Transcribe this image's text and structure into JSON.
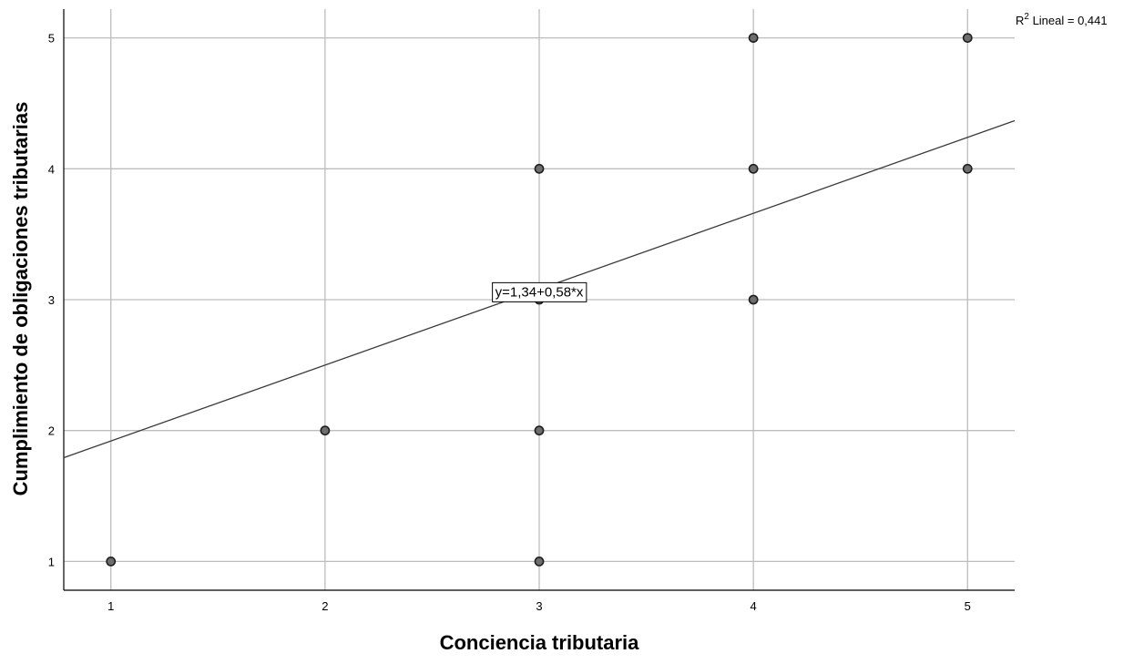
{
  "chart_data": {
    "type": "scatter",
    "title": "",
    "xlabel": "Conciencia tributaria",
    "ylabel": "Cumplimiento de obligaciones tributarias",
    "xlim": [
      0.78,
      5.22
    ],
    "ylim": [
      0.78,
      5.22
    ],
    "x_ticks": [
      "1",
      "2",
      "3",
      "4",
      "5"
    ],
    "y_ticks": [
      "1",
      "2",
      "3",
      "4",
      "5"
    ],
    "grid": true,
    "points": [
      {
        "x": 1,
        "y": 1
      },
      {
        "x": 2,
        "y": 2
      },
      {
        "x": 3,
        "y": 1
      },
      {
        "x": 3,
        "y": 2
      },
      {
        "x": 3,
        "y": 3
      },
      {
        "x": 3,
        "y": 4
      },
      {
        "x": 4,
        "y": 3
      },
      {
        "x": 4,
        "y": 4
      },
      {
        "x": 4,
        "y": 5
      },
      {
        "x": 5,
        "y": 4
      },
      {
        "x": 5,
        "y": 5
      }
    ],
    "fit_line": {
      "intercept": 1.34,
      "slope": 0.58
    },
    "equation_label": "y=1,34+0,58*x",
    "equation_anchor": {
      "x": 3,
      "y": 3.06
    },
    "r2_prefix": "R",
    "r2_superscript": "2",
    "r2_suffix": " Lineal = 0,441"
  }
}
